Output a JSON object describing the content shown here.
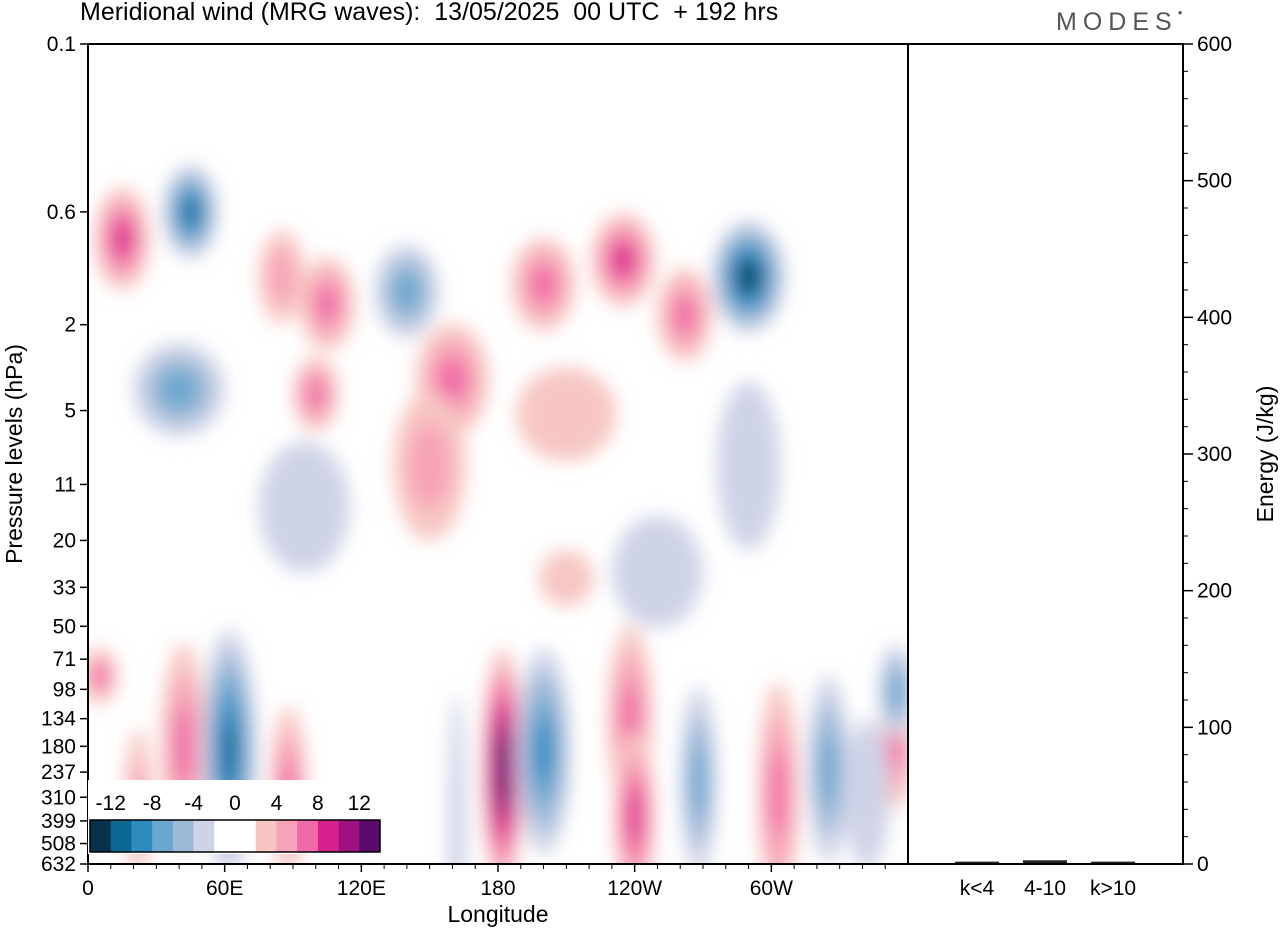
{
  "header": {
    "title": "Meridional wind (MRG waves):  13/05/2025  00 UTC  + 192 hrs",
    "brand": "MODES"
  },
  "colors": {
    "negative": [
      "#083249",
      "#0c6794",
      "#2f8bbf",
      "#6aa6cf",
      "#9cbad8",
      "#cfd3e6"
    ],
    "positive": [
      "#f7c6c2",
      "#f7a2b8",
      "#ef6aa6",
      "#d81f8d",
      "#a0107f",
      "#5b0b6e"
    ],
    "neutral": "#ffffff"
  },
  "chart_data": [
    {
      "type": "heatmap",
      "title": "Meridional wind (MRG waves):  13/05/2025  00 UTC  + 192 hrs",
      "xlabel": "Longitude",
      "ylabel": "Pressure levels (hPa)",
      "x_ticks": [
        "0",
        "60E",
        "120E",
        "180",
        "120W",
        "60W"
      ],
      "y_ticks": [
        "0.1",
        "0.6",
        "2",
        "5",
        "11",
        "20",
        "33",
        "50",
        "71",
        "98",
        "134",
        "180",
        "237",
        "310",
        "399",
        "508",
        "632"
      ],
      "colorbar": {
        "labels": [
          "-12",
          "-8",
          "-4",
          "0",
          "4",
          "8",
          "12"
        ],
        "levels": [
          -14,
          -12,
          -10,
          -8,
          -6,
          -4,
          -2,
          0,
          2,
          4,
          6,
          8,
          10,
          12,
          14
        ]
      },
      "features": [
        {
          "lon": 15,
          "lev": 0.8,
          "w": 12,
          "h": 0.55,
          "v": 9
        },
        {
          "lon": 45,
          "lev": 0.6,
          "w": 12,
          "h": 0.5,
          "v": -10
        },
        {
          "lon": 85,
          "lev": 1.2,
          "w": 10,
          "h": 0.5,
          "v": 4
        },
        {
          "lon": 105,
          "lev": 1.6,
          "w": 12,
          "h": 0.5,
          "v": 7
        },
        {
          "lon": 140,
          "lev": 1.4,
          "w": 14,
          "h": 0.5,
          "v": -5
        },
        {
          "lon": 200,
          "lev": 1.3,
          "w": 14,
          "h": 0.5,
          "v": 7
        },
        {
          "lon": 235,
          "lev": 1.0,
          "w": 14,
          "h": 0.5,
          "v": 9
        },
        {
          "lon": 290,
          "lev": 1.2,
          "w": 16,
          "h": 0.6,
          "v": -14
        },
        {
          "lon": 262,
          "lev": 1.8,
          "w": 12,
          "h": 0.5,
          "v": 5
        },
        {
          "lon": 40,
          "lev": 4.0,
          "w": 20,
          "h": 0.5,
          "v": -5
        },
        {
          "lon": 100,
          "lev": 4.2,
          "w": 10,
          "h": 0.4,
          "v": 6
        },
        {
          "lon": 160,
          "lev": 3.6,
          "w": 16,
          "h": 0.6,
          "v": 7
        },
        {
          "lon": 210,
          "lev": 5.2,
          "w": 22,
          "h": 0.5,
          "v": 2
        },
        {
          "lon": 150,
          "lev": 9.0,
          "w": 16,
          "h": 0.8,
          "v": 3
        },
        {
          "lon": 95,
          "lev": 14.0,
          "w": 20,
          "h": 0.7,
          "v": -2
        },
        {
          "lon": 290,
          "lev": 9.0,
          "w": 14,
          "h": 0.9,
          "v": -2
        },
        {
          "lon": 250,
          "lev": 28.0,
          "w": 20,
          "h": 0.6,
          "v": -2
        },
        {
          "lon": 210,
          "lev": 30.0,
          "w": 12,
          "h": 0.3,
          "v": 2
        },
        {
          "lon": 5,
          "lev": 85,
          "w": 8,
          "h": 0.3,
          "v": 5
        },
        {
          "lon": 42,
          "lev": 180,
          "w": 10,
          "h": 1.1,
          "v": 6
        },
        {
          "lon": 62,
          "lev": 190,
          "w": 12,
          "h": 1.3,
          "v": -10
        },
        {
          "lon": 88,
          "lev": 290,
          "w": 8,
          "h": 0.9,
          "v": 5
        },
        {
          "lon": 182,
          "lev": 230,
          "w": 9,
          "h": 1.3,
          "v": 15
        },
        {
          "lon": 162,
          "lev": 420,
          "w": 4,
          "h": 1.4,
          "v": -2
        },
        {
          "lon": 200,
          "lev": 190,
          "w": 12,
          "h": 1.1,
          "v": -8
        },
        {
          "lon": 238,
          "lev": 135,
          "w": 10,
          "h": 1.0,
          "v": 7
        },
        {
          "lon": 240,
          "lev": 380,
          "w": 9,
          "h": 0.9,
          "v": 8
        },
        {
          "lon": 268,
          "lev": 260,
          "w": 8,
          "h": 1.0,
          "v": -5
        },
        {
          "lon": 303,
          "lev": 300,
          "w": 9,
          "h": 1.2,
          "v": 5
        },
        {
          "lon": 325,
          "lev": 230,
          "w": 9,
          "h": 1.0,
          "v": -6
        },
        {
          "lon": 355,
          "lev": 175,
          "w": 7,
          "h": 0.7,
          "v": 7
        },
        {
          "lon": 355,
          "lev": 100,
          "w": 8,
          "h": 0.5,
          "v": -7
        },
        {
          "lon": 342,
          "lev": 300,
          "w": 10,
          "h": 0.8,
          "v": -2
        },
        {
          "lon": 22,
          "lev": 330,
          "w": 6,
          "h": 0.8,
          "v": 4
        }
      ]
    },
    {
      "type": "bar",
      "ylabel": "Energy (J/kg)",
      "categories": [
        "k<4",
        "4-10",
        "k>10"
      ],
      "values": [
        1,
        2,
        1
      ],
      "ylim": [
        0,
        600
      ],
      "y_ticks": [
        "0",
        "100",
        "200",
        "300",
        "400",
        "500",
        "600"
      ]
    }
  ]
}
